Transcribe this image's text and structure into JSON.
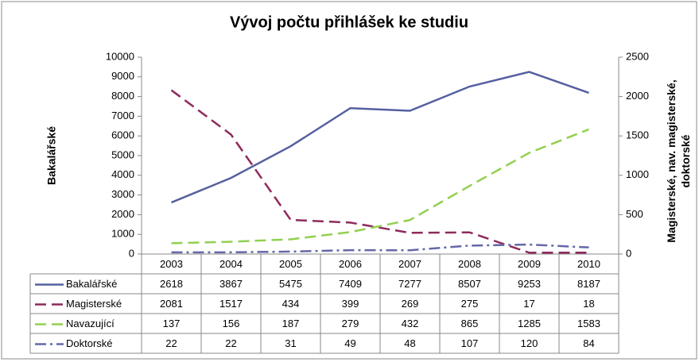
{
  "chart_data": {
    "type": "line",
    "title": "Vývoj počtu přihlášek ke studiu",
    "ylabel": "Bakalářské",
    "y2label": "Magisterské, nav. magisterské, doktorské",
    "categories": [
      "2003",
      "2004",
      "2005",
      "2006",
      "2007",
      "2008",
      "2009",
      "2010"
    ],
    "ylim": [
      0,
      10000
    ],
    "yticks": [
      0,
      1000,
      2000,
      3000,
      4000,
      5000,
      6000,
      7000,
      8000,
      9000,
      10000
    ],
    "y2lim": [
      0,
      2500
    ],
    "y2ticks": [
      0,
      500,
      1000,
      1500,
      2000,
      2500
    ],
    "series": [
      {
        "name": "Bakalářské",
        "color": "#5560a0",
        "dash": "solid",
        "values": [
          2618,
          3867,
          5475,
          7409,
          7277,
          8507,
          9253,
          8187
        ]
      },
      {
        "name": "Magisterské",
        "color": "#8e2a5c",
        "dash": "dash",
        "axis": "y2",
        "values": [
          2081,
          1517,
          434,
          399,
          269,
          275,
          17,
          18
        ]
      },
      {
        "name": "Navazující",
        "color": "#92d050",
        "dash": "dash",
        "axis": "y2",
        "values": [
          137,
          156,
          187,
          279,
          432,
          865,
          1285,
          1583
        ]
      },
      {
        "name": "Doktorské",
        "color": "#6468a8",
        "dash": "dashdot",
        "axis": "y2",
        "values": [
          22,
          22,
          31,
          49,
          48,
          107,
          120,
          84
        ]
      }
    ]
  }
}
